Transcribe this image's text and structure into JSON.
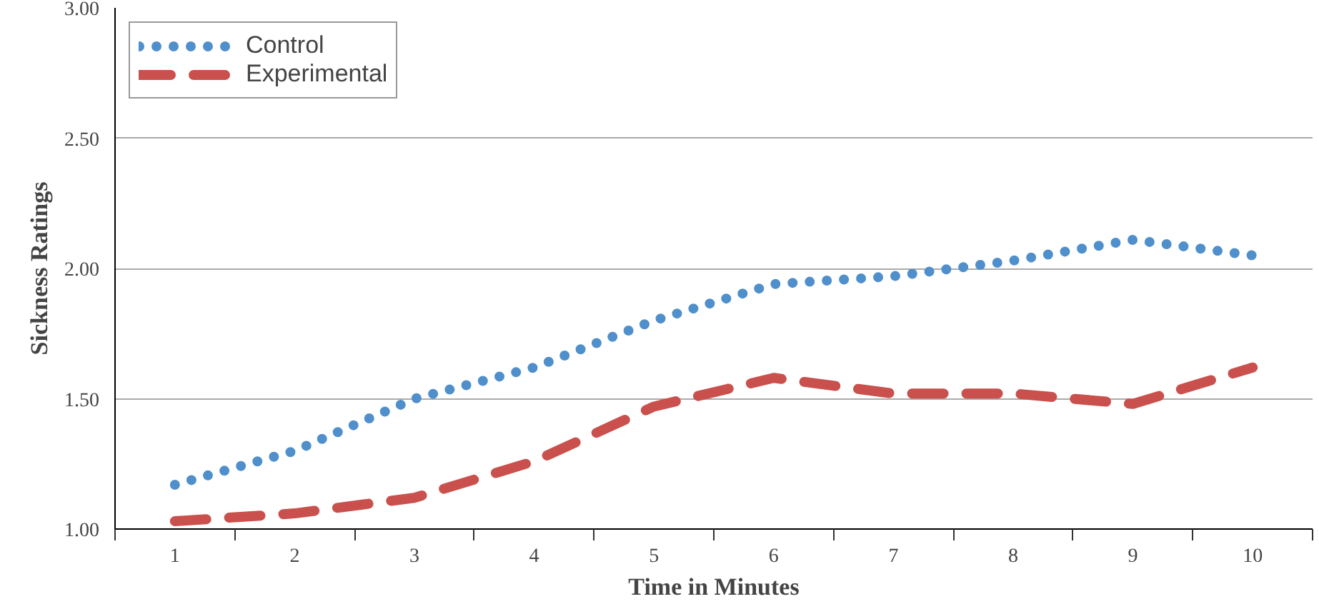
{
  "chart_data": {
    "type": "line",
    "xlabel": "Time in Minutes",
    "ylabel": "Sickness Ratings",
    "categories": [
      "1",
      "2",
      "3",
      "4",
      "5",
      "6",
      "7",
      "8",
      "9",
      "10"
    ],
    "series": [
      {
        "name": "Control",
        "color": "#4f8fcb",
        "line_style": "dotted",
        "values": [
          1.17,
          1.3,
          1.5,
          1.62,
          1.8,
          1.94,
          1.97,
          2.03,
          2.11,
          2.05
        ]
      },
      {
        "name": "Experimental",
        "color": "#c9504c",
        "line_style": "dashed",
        "values": [
          1.03,
          1.06,
          1.12,
          1.26,
          1.47,
          1.58,
          1.52,
          1.52,
          1.48,
          1.62
        ]
      }
    ],
    "ylim": [
      1.0,
      3.0
    ],
    "yticks": [
      {
        "value": 1.0,
        "label": "1.00"
      },
      {
        "value": 1.5,
        "label": "1.50"
      },
      {
        "value": 2.0,
        "label": "2.00"
      },
      {
        "value": 2.5,
        "label": "2.50"
      },
      {
        "value": 3.0,
        "label": "3.00"
      }
    ],
    "grid": "y",
    "legend": "top left",
    "marker": "none"
  }
}
